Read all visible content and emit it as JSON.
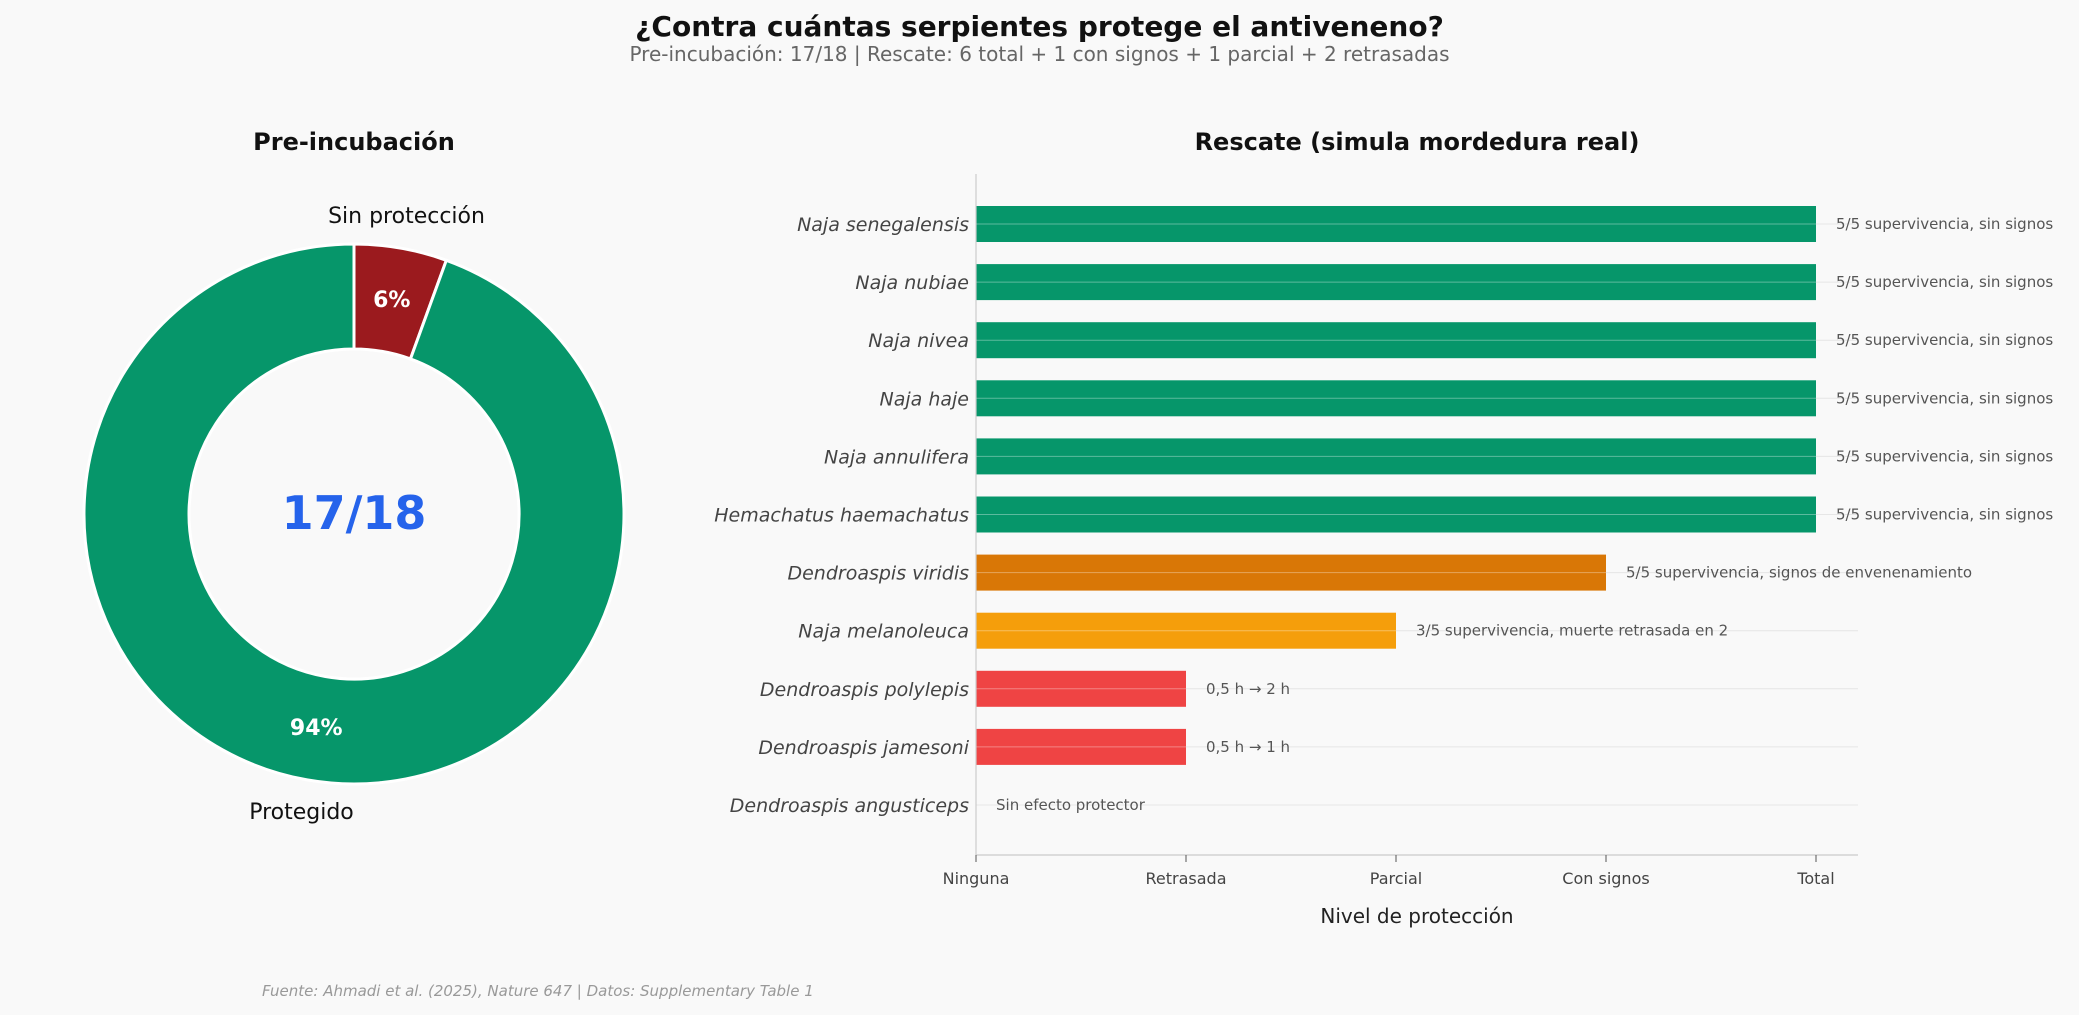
{
  "title": "¿Contra cuántas serpientes protege el antiveneno?",
  "subtitle": "Pre-incubación: 17/18 | Rescate: 6 total + 1 con signos + 1 parcial + 2 retrasadas",
  "source": "Fuente: Ahmadi et al. (2025), Nature 647 | Datos: Supplementary Table 1",
  "colors": {
    "protected": "#06966a",
    "unprotected": "#9b1a1e",
    "center_text": "#2563eb",
    "total": "#06966a",
    "con_signos": "#d97706",
    "parcial": "#f59e0b",
    "retrasada": "#ef4444"
  },
  "chart_data": [
    {
      "type": "pie",
      "style": "donut",
      "title": "Pre-incubación",
      "center_label": "17/18",
      "slices": [
        {
          "label": "Sin protección",
          "value": 1,
          "percent_label": "6%",
          "color": "#9b1a1e"
        },
        {
          "label": "Protegido",
          "value": 17,
          "percent_label": "94%",
          "color": "#06966a"
        }
      ]
    },
    {
      "type": "bar",
      "orientation": "horizontal",
      "title": "Rescate (simula mordedura real)",
      "xlabel": "Nivel de protección",
      "ylabel": "",
      "xlim": [
        0,
        4.2
      ],
      "x_ticks": [
        {
          "value": 0,
          "label": "Ninguna"
        },
        {
          "value": 1,
          "label": "Retrasada"
        },
        {
          "value": 2,
          "label": "Parcial"
        },
        {
          "value": 3,
          "label": "Con signos"
        },
        {
          "value": 4,
          "label": "Total"
        }
      ],
      "bars": [
        {
          "category": "Naja senegalensis",
          "value": 4,
          "color": "#06966a",
          "annotation": "5/5 supervivencia, sin signos"
        },
        {
          "category": "Naja nubiae",
          "value": 4,
          "color": "#06966a",
          "annotation": "5/5 supervivencia, sin signos"
        },
        {
          "category": "Naja nivea",
          "value": 4,
          "color": "#06966a",
          "annotation": "5/5 supervivencia, sin signos"
        },
        {
          "category": "Naja haje",
          "value": 4,
          "color": "#06966a",
          "annotation": "5/5 supervivencia, sin signos"
        },
        {
          "category": "Naja annulifera",
          "value": 4,
          "color": "#06966a",
          "annotation": "5/5 supervivencia, sin signos"
        },
        {
          "category": "Hemachatus haemachatus",
          "value": 4,
          "color": "#06966a",
          "annotation": "5/5 supervivencia, sin signos"
        },
        {
          "category": "Dendroaspis viridis",
          "value": 3,
          "color": "#d97706",
          "annotation": "5/5 supervivencia, signos de envenenamiento"
        },
        {
          "category": "Naja melanoleuca",
          "value": 2,
          "color": "#f59e0b",
          "annotation": "3/5 supervivencia, muerte retrasada en 2"
        },
        {
          "category": "Dendroaspis polylepis",
          "value": 1,
          "color": "#ef4444",
          "annotation": "0,5 h → 2 h"
        },
        {
          "category": "Dendroaspis jamesoni",
          "value": 1,
          "color": "#ef4444",
          "annotation": "0,5 h → 1 h"
        },
        {
          "category": "Dendroaspis angusticeps",
          "value": 0,
          "color": "#ef4444",
          "annotation": "Sin efecto protector"
        }
      ]
    }
  ]
}
